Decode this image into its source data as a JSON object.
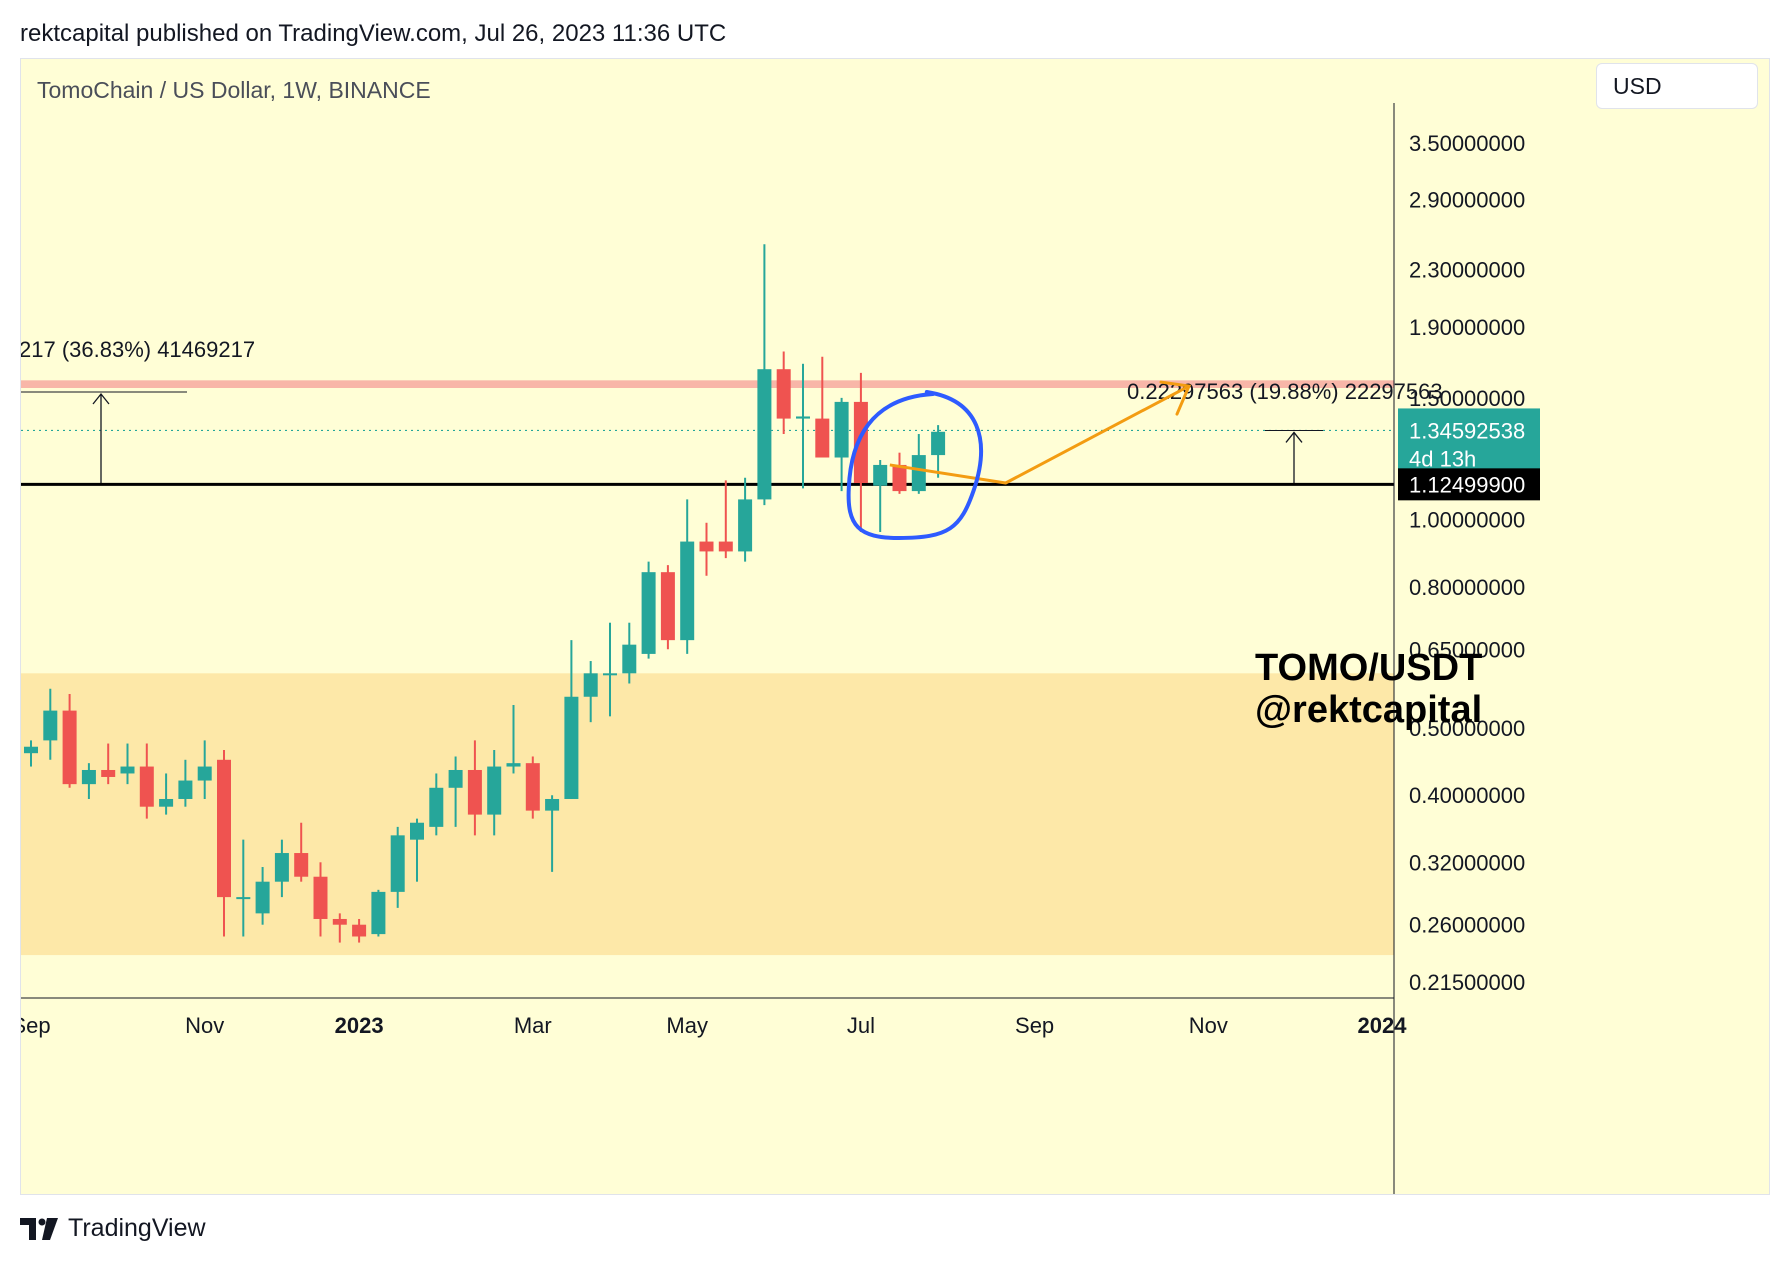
{
  "header": {
    "published": "rektcapital published on TradingView.com, Jul 26, 2023 11:36 UTC"
  },
  "chart": {
    "symbol": "TomoChain / US Dollar, 1W, BINANCE",
    "currency": "USD",
    "watermark_line1": "TOMO/USDT",
    "watermark_line2": "@rektcapital",
    "footer_brand": "TradingView"
  },
  "colors": {
    "up": "#26a69a",
    "down": "#ef5350",
    "background": "#fffed6",
    "demand_zone": "#fde8a8",
    "resistance_band": "#f8b6a8",
    "support_line": "#000000",
    "annotation_orange": "#f39c12",
    "annotation_circle": "#2e5bff"
  },
  "chart_data": {
    "type": "candlestick",
    "timeframe": "1W",
    "scale": "log",
    "ylim": [
      0.19,
      4.0
    ],
    "y_ticks": [
      3.5,
      2.9,
      2.3,
      1.9,
      1.5,
      1.0,
      0.8,
      0.65,
      0.5,
      0.4,
      0.32,
      0.26,
      0.215
    ],
    "y_tick_labels": [
      "3.50000000",
      "2.90000000",
      "2.30000000",
      "1.90000000",
      "1.50000000",
      "1.00000000",
      "0.80000000",
      "0.65000000",
      "0.50000000",
      "0.40000000",
      "0.32000000",
      "0.26000000",
      "0.21500000"
    ],
    "x_ticks": [
      {
        "label": "Sep",
        "index": 0,
        "bold": false
      },
      {
        "label": "Nov",
        "index": 9,
        "bold": false
      },
      {
        "label": "2023",
        "index": 17,
        "bold": true
      },
      {
        "label": "Mar",
        "index": 26,
        "bold": false
      },
      {
        "label": "May",
        "index": 34,
        "bold": false
      },
      {
        "label": "Jul",
        "index": 43,
        "bold": false
      },
      {
        "label": "Sep",
        "index": 52,
        "bold": false
      },
      {
        "label": "Nov",
        "index": 61,
        "bold": false
      },
      {
        "label": "2024",
        "index": 70,
        "bold": true
      }
    ],
    "candles": [
      {
        "o": 0.46,
        "h": 0.48,
        "l": 0.44,
        "c": 0.47
      },
      {
        "o": 0.48,
        "h": 0.57,
        "l": 0.45,
        "c": 0.53
      },
      {
        "o": 0.53,
        "h": 0.56,
        "l": 0.41,
        "c": 0.415
      },
      {
        "o": 0.415,
        "h": 0.445,
        "l": 0.395,
        "c": 0.435
      },
      {
        "o": 0.435,
        "h": 0.475,
        "l": 0.415,
        "c": 0.425
      },
      {
        "o": 0.43,
        "h": 0.475,
        "l": 0.415,
        "c": 0.44
      },
      {
        "o": 0.44,
        "h": 0.475,
        "l": 0.37,
        "c": 0.385
      },
      {
        "o": 0.385,
        "h": 0.43,
        "l": 0.375,
        "c": 0.395
      },
      {
        "o": 0.395,
        "h": 0.45,
        "l": 0.385,
        "c": 0.42
      },
      {
        "o": 0.42,
        "h": 0.48,
        "l": 0.395,
        "c": 0.44
      },
      {
        "o": 0.45,
        "h": 0.465,
        "l": 0.25,
        "c": 0.285
      },
      {
        "o": 0.285,
        "h": 0.345,
        "l": 0.25,
        "c": 0.285
      },
      {
        "o": 0.27,
        "h": 0.315,
        "l": 0.26,
        "c": 0.3
      },
      {
        "o": 0.3,
        "h": 0.345,
        "l": 0.285,
        "c": 0.33
      },
      {
        "o": 0.33,
        "h": 0.365,
        "l": 0.3,
        "c": 0.305
      },
      {
        "o": 0.305,
        "h": 0.32,
        "l": 0.25,
        "c": 0.265
      },
      {
        "o": 0.265,
        "h": 0.27,
        "l": 0.245,
        "c": 0.26
      },
      {
        "o": 0.26,
        "h": 0.265,
        "l": 0.245,
        "c": 0.25
      },
      {
        "o": 0.252,
        "h": 0.292,
        "l": 0.25,
        "c": 0.29
      },
      {
        "o": 0.29,
        "h": 0.36,
        "l": 0.275,
        "c": 0.35
      },
      {
        "o": 0.345,
        "h": 0.37,
        "l": 0.3,
        "c": 0.365
      },
      {
        "o": 0.36,
        "h": 0.43,
        "l": 0.35,
        "c": 0.41
      },
      {
        "o": 0.41,
        "h": 0.455,
        "l": 0.36,
        "c": 0.435
      },
      {
        "o": 0.435,
        "h": 0.48,
        "l": 0.35,
        "c": 0.375
      },
      {
        "o": 0.375,
        "h": 0.465,
        "l": 0.35,
        "c": 0.44
      },
      {
        "o": 0.44,
        "h": 0.54,
        "l": 0.43,
        "c": 0.445
      },
      {
        "o": 0.445,
        "h": 0.455,
        "l": 0.37,
        "c": 0.38
      },
      {
        "o": 0.38,
        "h": 0.4,
        "l": 0.31,
        "c": 0.395
      },
      {
        "o": 0.395,
        "h": 0.67,
        "l": 0.395,
        "c": 0.555
      },
      {
        "o": 0.555,
        "h": 0.625,
        "l": 0.51,
        "c": 0.6
      },
      {
        "o": 0.6,
        "h": 0.71,
        "l": 0.52,
        "c": 0.6
      },
      {
        "o": 0.6,
        "h": 0.71,
        "l": 0.58,
        "c": 0.66
      },
      {
        "o": 0.64,
        "h": 0.87,
        "l": 0.63,
        "c": 0.84
      },
      {
        "o": 0.84,
        "h": 0.86,
        "l": 0.65,
        "c": 0.67
      },
      {
        "o": 0.67,
        "h": 1.07,
        "l": 0.64,
        "c": 0.93
      },
      {
        "o": 0.93,
        "h": 0.99,
        "l": 0.83,
        "c": 0.9
      },
      {
        "o": 0.93,
        "h": 1.14,
        "l": 0.88,
        "c": 0.9
      },
      {
        "o": 0.9,
        "h": 1.15,
        "l": 0.87,
        "c": 1.07
      },
      {
        "o": 1.07,
        "h": 2.5,
        "l": 1.05,
        "c": 1.65
      },
      {
        "o": 1.65,
        "h": 1.75,
        "l": 1.33,
        "c": 1.4
      },
      {
        "o": 1.4,
        "h": 1.68,
        "l": 1.11,
        "c": 1.41
      },
      {
        "o": 1.4,
        "h": 1.72,
        "l": 1.24,
        "c": 1.23
      },
      {
        "o": 1.23,
        "h": 1.5,
        "l": 1.1,
        "c": 1.48
      },
      {
        "o": 1.48,
        "h": 1.63,
        "l": 0.96,
        "c": 1.13
      },
      {
        "o": 1.12,
        "h": 1.22,
        "l": 0.96,
        "c": 1.2
      },
      {
        "o": 1.2,
        "h": 1.25,
        "l": 1.09,
        "c": 1.1
      },
      {
        "o": 1.1,
        "h": 1.33,
        "l": 1.09,
        "c": 1.24
      },
      {
        "o": 1.24,
        "h": 1.37,
        "l": 1.15,
        "c": 1.34
      }
    ],
    "levels": {
      "support": 1.125,
      "support_label": "1.12499900",
      "resistance_low": 1.55,
      "resistance_high": 1.59,
      "demand_zone": [
        0.235,
        0.6
      ],
      "current_price": 1.34592538,
      "current_price_label": "1.34592538",
      "countdown": "4d 13h"
    },
    "annotations": {
      "left_measure_text": "217 (36.83%) 41469217",
      "right_measure_text": "0.22297563 (19.88%) 22297563",
      "orange_path": [
        {
          "index": 44.5,
          "price": 1.2
        },
        {
          "index": 50.5,
          "price": 1.13
        },
        {
          "index": 60,
          "price": 1.56
        }
      ],
      "circle_center": {
        "index": 46,
        "price": 1.18
      }
    }
  }
}
